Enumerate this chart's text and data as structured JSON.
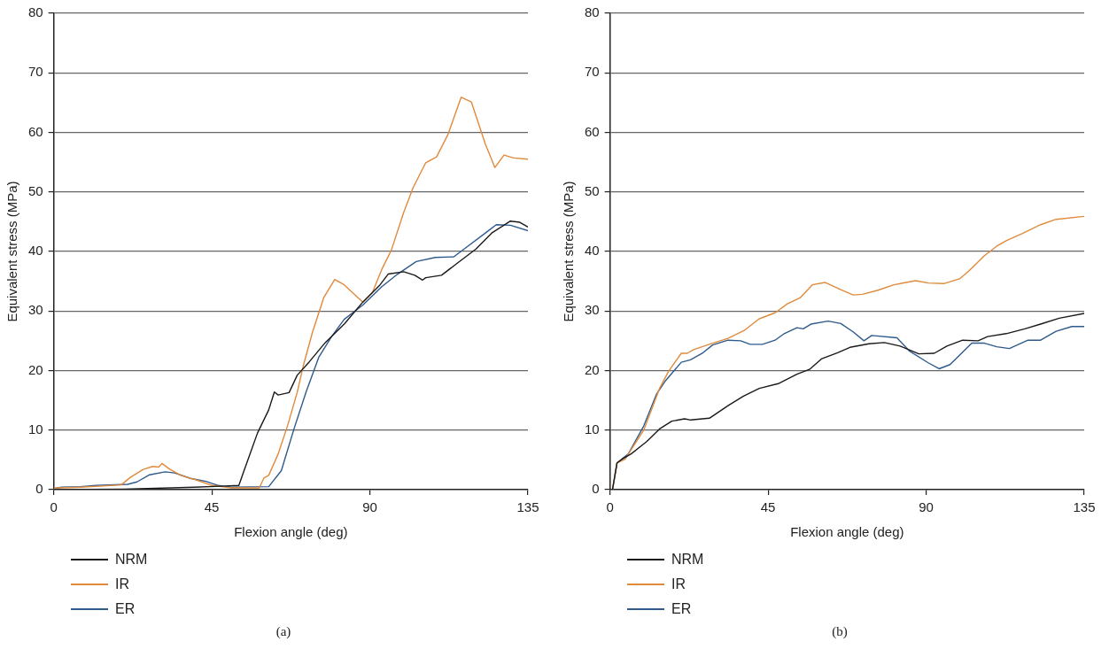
{
  "chart_data": [
    {
      "type": "line",
      "xlabel": "Flexion angle (deg)",
      "ylabel": "Equivalent stress (MPa)",
      "xlim": [
        0,
        135
      ],
      "xticks": [
        0,
        45,
        90,
        135
      ],
      "ylim": [
        0,
        80
      ],
      "yticks": [
        0,
        10,
        20,
        30,
        40,
        50,
        60,
        70,
        80
      ],
      "grid": "y",
      "legend": "bottom left",
      "marker": "none",
      "line_style": "solid",
      "annotations": [
        "(a)"
      ],
      "series": [
        {
          "name": "NRM",
          "color": "#1a1a1a",
          "x": [
            0,
            20,
            40,
            52.7,
            54,
            58,
            61.2,
            62.8,
            63.9,
            67,
            69.3,
            72.8,
            77.3,
            82.7,
            88,
            92.9,
            95.2,
            99.6,
            102.8,
            105,
            105.9,
            110.4,
            114.8,
            120.2,
            124.7,
            130,
            132.7,
            135
          ],
          "values": [
            0,
            0.1,
            0.4,
            0.7,
            2.9,
            9.5,
            13.4,
            16.4,
            15.9,
            16.3,
            19.2,
            21.5,
            24.7,
            27.8,
            31.5,
            34.4,
            36.2,
            36.6,
            36,
            35.2,
            35.6,
            36,
            38,
            40.4,
            43.1,
            45.1,
            44.9,
            44.1
          ]
        },
        {
          "name": "IR",
          "color": "#e08a3c",
          "x": [
            0,
            1.3,
            7.6,
            19.2,
            21.9,
            25.5,
            28.2,
            29.9,
            30.8,
            33.1,
            36.2,
            40.7,
            45.1,
            50.5,
            58.5,
            59.9,
            61.2,
            63.9,
            66.6,
            69.3,
            71,
            73.7,
            76.9,
            80,
            82.7,
            85.4,
            88,
            90.7,
            93.4,
            96.1,
            99.6,
            102.3,
            105.9,
            109,
            112.2,
            116,
            118.9,
            122.9,
            125.6,
            128.2,
            130.9,
            135
          ],
          "values": [
            0.2,
            0.3,
            0.4,
            0.8,
            2.1,
            3.4,
            3.9,
            3.8,
            4.4,
            3.4,
            2.4,
            1.6,
            0.7,
            0.3,
            0.3,
            2,
            2.4,
            6,
            10.8,
            16.3,
            20.7,
            26.5,
            32.3,
            35.3,
            34.4,
            32.9,
            31.5,
            33.1,
            37,
            40.2,
            46.5,
            50.7,
            54.9,
            55.9,
            59.6,
            65.9,
            65.1,
            58,
            54.1,
            56.2,
            55.7,
            55.5
          ]
        },
        {
          "name": "ER",
          "color": "#2e5a8c",
          "x": [
            0,
            2.2,
            7.6,
            12,
            21,
            23.7,
            27.3,
            31.7,
            34.4,
            38.9,
            43.3,
            46.9,
            50.5,
            61.2,
            64.8,
            68.4,
            71.9,
            75.5,
            79.1,
            82.7,
            88,
            93.4,
            97.9,
            103.2,
            108.6,
            113.9,
            117.5,
            122.9,
            126,
            130,
            135
          ],
          "values": [
            0.2,
            0.4,
            0.5,
            0.7,
            0.9,
            1.3,
            2.5,
            3,
            2.8,
            1.9,
            1.4,
            0.7,
            0.4,
            0.5,
            3.2,
            10.2,
            16.5,
            22.3,
            25.7,
            28.6,
            31,
            34.1,
            36.2,
            38.3,
            39,
            39.1,
            40.7,
            43.1,
            44.5,
            44.4,
            43.5
          ]
        }
      ]
    },
    {
      "type": "line",
      "xlabel": "Flexion angle (deg)",
      "ylabel": "Equivalent stress (MPa)",
      "xlim": [
        0,
        135
      ],
      "xticks": [
        0,
        45,
        90,
        135
      ],
      "ylim": [
        0,
        80
      ],
      "yticks": [
        0,
        10,
        20,
        30,
        40,
        50,
        60,
        70,
        80
      ],
      "grid": "y",
      "legend": "bottom left",
      "marker": "none",
      "line_style": "solid",
      "annotations": [
        "(b)"
      ],
      "series": [
        {
          "name": "NRM",
          "color": "#1a1a1a",
          "x": [
            0.7,
            2,
            3.4,
            6,
            10.5,
            14.1,
            17.6,
            21.2,
            23,
            28.3,
            33.6,
            38,
            42.5,
            47.9,
            53.2,
            56.8,
            60.3,
            64.8,
            68.3,
            73.7,
            78.1,
            82.6,
            87.9,
            92.3,
            95.9,
            100.4,
            104.8,
            107.5,
            112.8,
            118.1,
            122.6,
            127.9,
            135
          ],
          "values": [
            0,
            4.5,
            5.1,
            6,
            8.1,
            10.2,
            11.5,
            11.9,
            11.7,
            12,
            14.1,
            15.7,
            17,
            17.8,
            19.4,
            20.2,
            22,
            23,
            23.9,
            24.5,
            24.7,
            24.1,
            22.8,
            22.9,
            24.1,
            25.1,
            25,
            25.7,
            26.2,
            27,
            27.8,
            28.8,
            29.6
          ]
        },
        {
          "name": "IR",
          "color": "#e08a3c",
          "x": [
            0.7,
            2,
            4.3,
            6,
            9.6,
            14.1,
            16.7,
            20.3,
            22,
            23.8,
            29.2,
            33.6,
            38.1,
            42.5,
            47,
            50.5,
            54.1,
            57.6,
            61.2,
            65.7,
            69.2,
            71.9,
            76.3,
            80.8,
            87,
            90.6,
            95,
            99.5,
            102.1,
            106.6,
            110.1,
            112.8,
            117.3,
            122.6,
            127,
            135
          ],
          "values": [
            0,
            4.5,
            5.1,
            6.7,
            10,
            17,
            19.9,
            22.9,
            22.9,
            23.5,
            24.6,
            25.4,
            26.7,
            28.7,
            29.7,
            31.2,
            32.2,
            34.4,
            34.8,
            33.6,
            32.7,
            32.8,
            33.5,
            34.4,
            35.1,
            34.7,
            34.6,
            35.4,
            36.7,
            39.3,
            40.9,
            41.8,
            43,
            44.5,
            45.4,
            45.9
          ]
        },
        {
          "name": "ER",
          "color": "#2e5a8c",
          "x": [
            0.7,
            2,
            5.2,
            9.6,
            13.2,
            15.8,
            20.3,
            22.9,
            26.5,
            29.2,
            33.6,
            37.2,
            39.9,
            43.4,
            47,
            49.6,
            53.2,
            55,
            57.2,
            62.1,
            65.7,
            69.2,
            72.3,
            74.5,
            81.7,
            85.2,
            90.6,
            93.7,
            96.8,
            103,
            106.6,
            110.1,
            113.7,
            119,
            122.6,
            127,
            131.5,
            135
          ],
          "values": [
            0,
            4.5,
            6,
            10.7,
            16,
            18.3,
            21.4,
            21.8,
            23,
            24.3,
            25.1,
            25,
            24.4,
            24.4,
            25.1,
            26.2,
            27.2,
            27,
            27.8,
            28.3,
            27.9,
            26.5,
            25,
            25.9,
            25.5,
            23.3,
            21.3,
            20.3,
            21,
            24.6,
            24.6,
            24,
            23.7,
            25.1,
            25.1,
            26.6,
            27.4,
            27.4
          ]
        }
      ]
    }
  ]
}
